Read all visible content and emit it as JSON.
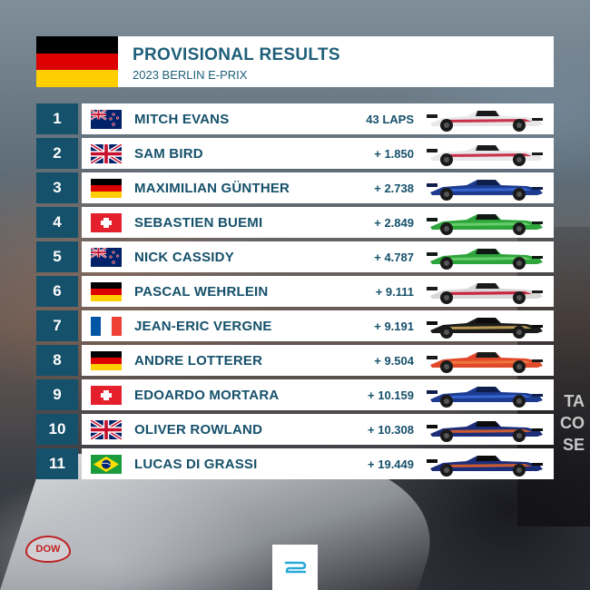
{
  "header": {
    "title": "PROVISIONAL RESULTS",
    "subtitle": "2023 BERLIN E-PRIX",
    "flag": "germany-flag"
  },
  "colors": {
    "primary": "#16516b",
    "title": "#1f5f7a",
    "row_bg": "#ffffff"
  },
  "results": [
    {
      "pos": "1",
      "driver": "MITCH EVANS",
      "gap": "43 LAPS",
      "flag": "nz",
      "car": {
        "body": "#e8e8ea",
        "accent": "#1a1a1a",
        "trim": "#c41e3a"
      }
    },
    {
      "pos": "2",
      "driver": "SAM BIRD",
      "gap": "+ 1.850",
      "flag": "gb",
      "car": {
        "body": "#e8e8ea",
        "accent": "#1a1a1a",
        "trim": "#c41e3a"
      }
    },
    {
      "pos": "3",
      "driver": "MAXIMILIAN GÜNTHER",
      "gap": "+ 2.738",
      "flag": "de",
      "car": {
        "body": "#1d3b8f",
        "accent": "#0f1e4a",
        "trim": "#3a6ad6"
      }
    },
    {
      "pos": "4",
      "driver": "SEBASTIEN BUEMI",
      "gap": "+ 2.849",
      "flag": "ch",
      "car": {
        "body": "#2ea43c",
        "accent": "#0f1a12",
        "trim": "#6ad46a"
      }
    },
    {
      "pos": "5",
      "driver": "NICK CASSIDY",
      "gap": "+ 4.787",
      "flag": "nz",
      "car": {
        "body": "#2ea43c",
        "accent": "#0f1a12",
        "trim": "#6ad46a"
      }
    },
    {
      "pos": "6",
      "driver": "PASCAL WEHRLEIN",
      "gap": "+ 9.111",
      "flag": "de",
      "car": {
        "body": "#d9d6d6",
        "accent": "#1a1a1a",
        "trim": "#c8102e"
      }
    },
    {
      "pos": "7",
      "driver": "JEAN-ERIC VERGNE",
      "gap": "+ 9.191",
      "flag": "fr",
      "car": {
        "body": "#1a1a1a",
        "accent": "#0c0c0c",
        "trim": "#c9a75b"
      }
    },
    {
      "pos": "8",
      "driver": "ANDRE LOTTERER",
      "gap": "+ 9.504",
      "flag": "de",
      "car": {
        "body": "#e04a2a",
        "accent": "#1a1a1a",
        "trim": "#f07a40"
      }
    },
    {
      "pos": "9",
      "driver": "EDOARDO MORTARA",
      "gap": "+ 10.159",
      "flag": "ch",
      "car": {
        "body": "#1d3b8f",
        "accent": "#0f1e4a",
        "trim": "#3a6ad6"
      }
    },
    {
      "pos": "10",
      "driver": "OLIVER ROWLAND",
      "gap": "+ 10.308",
      "flag": "gb",
      "car": {
        "body": "#1c2e7a",
        "accent": "#0c0c0c",
        "trim": "#e0602a"
      }
    },
    {
      "pos": "11",
      "driver": "LUCAS DI GRASSI",
      "gap": "+ 19.449",
      "flag": "br",
      "car": {
        "body": "#1c2e7a",
        "accent": "#0c0c0c",
        "trim": "#e0602a"
      }
    }
  ],
  "background": {
    "text_lines": [
      "TA",
      "CO",
      "SE"
    ],
    "logo_text": "DOW"
  },
  "footer": {
    "logo": "formula-e-logo"
  }
}
